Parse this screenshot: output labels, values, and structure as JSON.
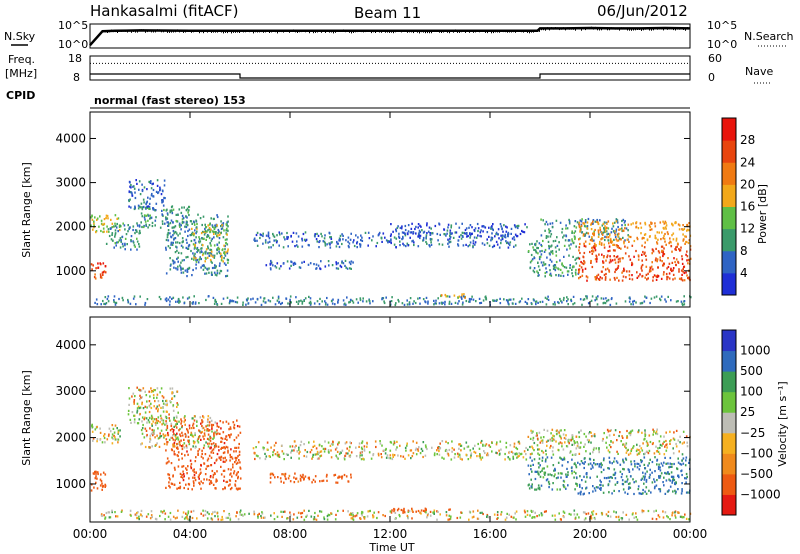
{
  "header": {
    "station": "Hankasalmi (fitACF)",
    "beam": "Beam 11",
    "date": "06/Jun/2012"
  },
  "side_labels": {
    "nsky": "N.Sky",
    "nsearch": "N.Search",
    "freq_line1": "Freq.",
    "freq_line2": "[MHz]",
    "nave": "Nave",
    "cpid": "CPID"
  },
  "cpid_text": "normal (fast stereo) 153",
  "colors": {
    "power_scale": [
      "#1f2fd6",
      "#2f64c4",
      "#3a9a6a",
      "#5fbf45",
      "#f2a81a",
      "#f07a12",
      "#e8450e",
      "#e8140c"
    ],
    "velocity_scale": [
      "#e51a12",
      "#ee5a12",
      "#f08a1c",
      "#f5b020",
      "#bdbdb5",
      "#6cc43c",
      "#3c9d55",
      "#2f6bbd",
      "#2a35c6"
    ]
  },
  "chart_data": [
    {
      "type": "line",
      "name_left": "N.Sky",
      "name_right": "N.Search",
      "y_ticks_left": [
        "10^5",
        "10^0"
      ],
      "y_ticks_right": [
        "10^5",
        "10^0"
      ],
      "x_hours": [
        0,
        0.5,
        1,
        2,
        4,
        6,
        8,
        10,
        12,
        14,
        16,
        17.9,
        18,
        19,
        20,
        21,
        22,
        23,
        24
      ],
      "nsky_log": [
        0.2,
        3.7,
        3.8,
        3.9,
        3.8,
        3.8,
        3.8,
        3.8,
        3.8,
        3.8,
        3.8,
        3.8,
        4.4,
        4.4,
        4.5,
        4.4,
        4.4,
        4.5,
        4.4
      ]
    },
    {
      "type": "line",
      "y_ticks_left": [
        "18",
        "8"
      ],
      "y_ticks_right": [
        "60",
        "0"
      ],
      "freq_label": [
        "Freq.",
        "[MHz]"
      ],
      "nave_label": "Nave",
      "freq_mhz": {
        "x_hours": [
          0,
          6,
          6,
          18,
          18,
          24
        ],
        "values": [
          10,
          10,
          8,
          8,
          10,
          10
        ]
      },
      "nave": {
        "x_hours": [
          0,
          24
        ],
        "values": [
          44,
          44
        ]
      }
    },
    {
      "type": "heatmap",
      "quantity": "Power",
      "ylabel": "Slant Range [km]",
      "y_ticks": [
        1000,
        2000,
        3000,
        4000
      ],
      "ylim": [
        180,
        4600
      ],
      "xlim_hours": [
        0,
        24
      ],
      "colorbar_title": "Power [dB]",
      "colorbar_ticks": [
        4,
        8,
        12,
        16,
        20,
        24,
        28
      ],
      "colorbar_range": [
        0,
        32
      ],
      "bands": [
        {
          "t0": 0.0,
          "t1": 0.6,
          "r0": 850,
          "r1": 1200,
          "value": 27
        },
        {
          "t0": 0.0,
          "t1": 1.2,
          "r0": 1900,
          "r1": 2300,
          "value": 16
        },
        {
          "t0": 0.6,
          "t1": 2.0,
          "r0": 1500,
          "r1": 2100,
          "value": 9
        },
        {
          "t0": 1.5,
          "t1": 3.0,
          "r0": 2400,
          "r1": 3100,
          "value": 6
        },
        {
          "t0": 2.0,
          "t1": 4.0,
          "r0": 2000,
          "r1": 2500,
          "value": 10
        },
        {
          "t0": 3.0,
          "t1": 5.5,
          "r0": 900,
          "r1": 2300,
          "value": 8
        },
        {
          "t0": 4.0,
          "t1": 5.5,
          "r0": 1200,
          "r1": 2100,
          "value": 14
        },
        {
          "t0": 6.5,
          "t1": 17.0,
          "r0": 1550,
          "r1": 1900,
          "value": 6
        },
        {
          "t0": 7.0,
          "t1": 10.5,
          "r0": 1050,
          "r1": 1250,
          "value": 6
        },
        {
          "t0": 12.0,
          "t1": 17.5,
          "r0": 1800,
          "r1": 2100,
          "value": 5
        },
        {
          "t0": 14.0,
          "t1": 15.0,
          "r0": 400,
          "r1": 500,
          "value": 18
        },
        {
          "t0": 17.5,
          "t1": 19.5,
          "r0": 900,
          "r1": 1700,
          "value": 10
        },
        {
          "t0": 18.0,
          "t1": 21.5,
          "r0": 1700,
          "r1": 2200,
          "value": 9
        },
        {
          "t0": 19.5,
          "t1": 24.0,
          "r0": 800,
          "r1": 1600,
          "value": 26
        },
        {
          "t0": 19.5,
          "t1": 24.0,
          "r0": 1600,
          "r1": 2150,
          "value": 20
        },
        {
          "t0": 0.0,
          "t1": 24.0,
          "r0": 250,
          "r1": 450,
          "value": 8
        }
      ]
    },
    {
      "type": "heatmap",
      "quantity": "Velocity",
      "ylabel": "Slant Range [km]",
      "xlabel": "Time UT",
      "x_ticks": [
        "00:00",
        "04:00",
        "08:00",
        "12:00",
        "16:00",
        "20:00",
        "00:00"
      ],
      "y_ticks": [
        1000,
        2000,
        3000,
        4000
      ],
      "ylim": [
        180,
        4600
      ],
      "xlim_hours": [
        0,
        24
      ],
      "colorbar_title": "Velocity [m s⁻¹]",
      "colorbar_ticks": [
        "1000",
        "500",
        "100",
        "25",
        "−25",
        "−100",
        "−500",
        "−1000"
      ],
      "bands": [
        {
          "t0": 0.0,
          "t1": 0.6,
          "r0": 850,
          "r1": 1300,
          "value": -300
        },
        {
          "t0": 0.0,
          "t1": 1.2,
          "r0": 1900,
          "r1": 2300,
          "value": 0
        },
        {
          "t0": 1.5,
          "t1": 3.5,
          "r0": 2300,
          "r1": 3100,
          "value": 0
        },
        {
          "t0": 2.0,
          "t1": 5.0,
          "r0": 1800,
          "r1": 2500,
          "value": 0
        },
        {
          "t0": 3.0,
          "t1": 6.0,
          "r0": 900,
          "r1": 2400,
          "value": -400
        },
        {
          "t0": 6.5,
          "t1": 17.5,
          "r0": 1550,
          "r1": 1950,
          "value": 0
        },
        {
          "t0": 7.0,
          "t1": 10.5,
          "r0": 1050,
          "r1": 1250,
          "value": -200
        },
        {
          "t0": 12.0,
          "t1": 14.5,
          "r0": 400,
          "r1": 500,
          "value": -300
        },
        {
          "t0": 17.5,
          "t1": 24.0,
          "r0": 1650,
          "r1": 2200,
          "value": 0
        },
        {
          "t0": 17.5,
          "t1": 19.5,
          "r0": 900,
          "r1": 1600,
          "value": 200
        },
        {
          "t0": 19.5,
          "t1": 24.0,
          "r0": 800,
          "r1": 1600,
          "value": 300
        },
        {
          "t0": 0.0,
          "t1": 24.0,
          "r0": 250,
          "r1": 450,
          "value": 0
        }
      ]
    }
  ]
}
